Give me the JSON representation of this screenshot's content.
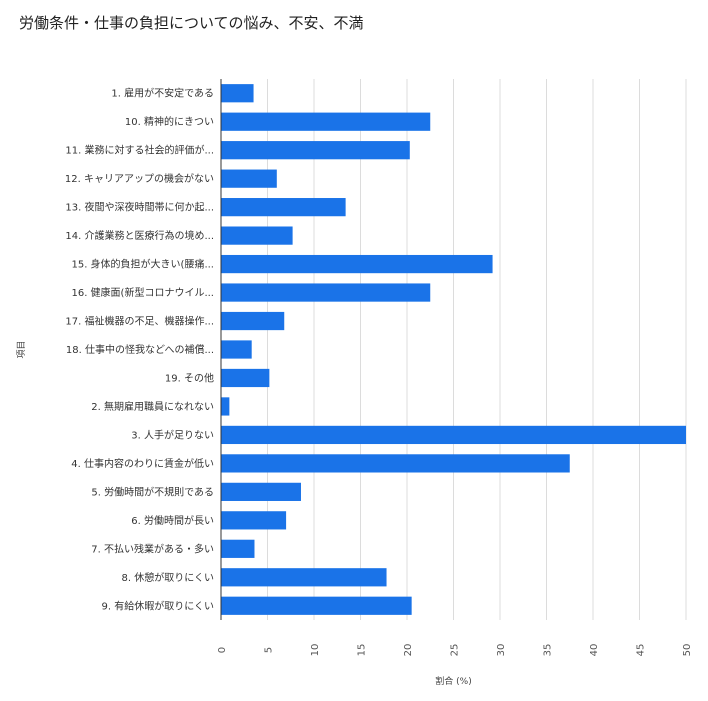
{
  "chart_data": {
    "type": "bar",
    "orientation": "horizontal",
    "title": "労働条件・仕事の負担についての悩み、不安、不満",
    "xlabel": "割合 (%)",
    "ylabel": "項目",
    "xlim": [
      0,
      50
    ],
    "xticks": [
      0,
      5,
      10,
      15,
      20,
      25,
      30,
      35,
      40,
      45,
      50
    ],
    "grid": true,
    "legend": "none",
    "bar_color": "#1a73e8",
    "categories": [
      "1. 雇用が不安定である",
      "10. 精神的にきつい",
      "11. 業務に対する社会的評価が...",
      "12. キャリアアップの機会がない",
      "13. 夜間や深夜時間帯に何か起...",
      "14. 介護業務と医療行為の境め...",
      "15. 身体的負担が大きい(腰痛...",
      "16. 健康面(新型コロナウイル...",
      "17. 福祉機器の不足、機器操作...",
      "18. 仕事中の怪我などへの補償...",
      "19. その他",
      "2. 無期雇用職員になれない",
      "3. 人手が足りない",
      "4. 仕事内容のわりに賃金が低い",
      "5. 労働時間が不規則である",
      "6. 労働時間が長い",
      "7. 不払い残業がある・多い",
      "8. 休憩が取りにくい",
      "9. 有給休暇が取りにくい"
    ],
    "values": [
      3.5,
      22.5,
      20.3,
      6.0,
      13.4,
      7.7,
      29.2,
      22.5,
      6.8,
      3.3,
      5.2,
      0.9,
      50.0,
      37.5,
      8.6,
      7.0,
      3.6,
      17.8,
      20.5
    ]
  }
}
